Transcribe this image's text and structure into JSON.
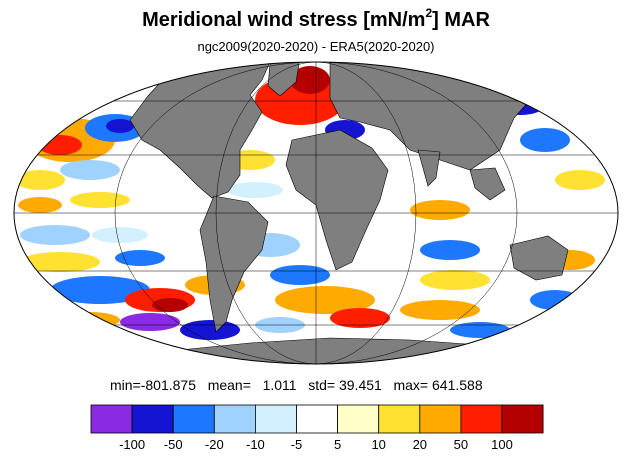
{
  "title": {
    "main": "Meridional wind stress [mN/m",
    "sup": "2",
    "suffix": "] MAR"
  },
  "subtitle": "ngc2009(2020-2020) - ERA5(2020-2020)",
  "stats": {
    "min_label": "min=",
    "min": "-801.875",
    "mean_label": "mean=",
    "mean": "1.011",
    "std_label": "std=",
    "std": "39.451",
    "max_label": "max=",
    "max": "641.588"
  },
  "colorbar": {
    "colors": [
      "#8a2be2",
      "#1414d2",
      "#1e78ff",
      "#a0d2ff",
      "#d2f0ff",
      "#ffffff",
      "#ffffc8",
      "#ffe132",
      "#ffaa00",
      "#ff1e00",
      "#b40000"
    ],
    "tick_labels": [
      "-100",
      "-50",
      "-20",
      "-10",
      "-5",
      "5",
      "10",
      "20",
      "50",
      "100"
    ]
  },
  "map": {
    "projection": "Mollweide",
    "land_color": "#7f7f7f",
    "ocean_default": "#ffffff"
  }
}
